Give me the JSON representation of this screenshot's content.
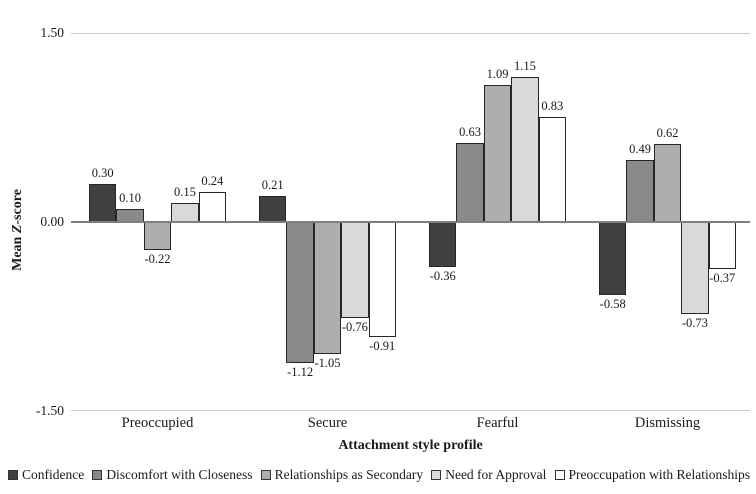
{
  "chart_data": {
    "type": "bar",
    "title": "",
    "xlabel": "Attachment style profile",
    "ylabel": "Mean Z-score",
    "ylabel_prefix": "Mean ",
    "ylabel_italic": "Z",
    "ylabel_suffix": "-score",
    "categories": [
      "Preoccupied",
      "Secure",
      "Fearful",
      "Dismissing"
    ],
    "series": [
      {
        "name": "Confidence",
        "color": "#404040",
        "values": [
          0.3,
          0.21,
          -0.36,
          -0.58
        ]
      },
      {
        "name": "Discomfort with Closeness",
        "color": "#898989",
        "values": [
          0.1,
          -1.12,
          0.63,
          0.49
        ]
      },
      {
        "name": "Relationships as Secondary",
        "color": "#aeaeae",
        "values": [
          -0.22,
          -1.05,
          1.09,
          0.62
        ]
      },
      {
        "name": "Need for Approval",
        "color": "#d9d9d9",
        "values": [
          0.15,
          -0.76,
          1.15,
          -0.73
        ]
      },
      {
        "name": "Preoccupation with Relationships",
        "color": "#ffffff",
        "values": [
          0.24,
          -0.91,
          0.83,
          -0.37
        ]
      }
    ],
    "y_ticks": [
      {
        "label": "1.50",
        "value": 1.5
      },
      {
        "label": "0.00",
        "value": 0.0
      },
      {
        "label": "-1.50",
        "value": -1.5
      }
    ],
    "ylim": [
      -1.5,
      1.5
    ],
    "value_labels": "on",
    "grid": "horizontal-ends-only",
    "legend_position": "bottom"
  },
  "styles": {
    "bar_border": "#262626",
    "axis_line_color": "#7f7f7f",
    "gridline_color": "#c9c9c9",
    "text_color": "#1a1a1a"
  }
}
